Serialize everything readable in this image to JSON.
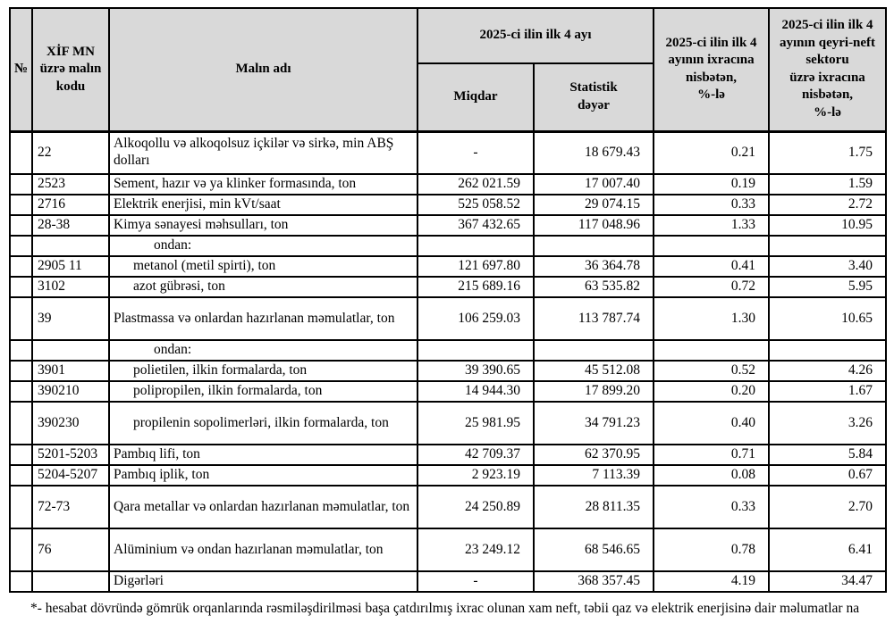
{
  "header": {
    "col_no": "№",
    "col_code": "XİF MN\nüzrə malın\nkodu",
    "col_name": "Malın adı",
    "col_period": "2025-ci ilin ilk 4 ayı",
    "col_qty": "Miqdar",
    "col_value": "Statistik\ndəyər",
    "col_share_total": "2025-ci ilin ilk 4\nayının ixracına\nnisbətən,\n%-lə",
    "col_share_nonoil": "2025-ci ilin ilk 4\nayının qeyri-neft\nsektoru\nüzrə ixracına\nnisbətən,\n%-lə"
  },
  "rows": [
    {
      "no": "",
      "code": "22",
      "name": "Alkoqollu və alkoqolsuz içkilər və sirkə, min ABŞ dolları",
      "qty": "-",
      "val": "18 679.43",
      "p1": "0.21",
      "p2": "1.75",
      "ind": 0,
      "tall": true
    },
    {
      "no": "",
      "code": "2523",
      "name": "Sement, hazır və ya klinker formasında, ton",
      "qty": "262 021.59",
      "val": "17 007.40",
      "p1": "0.19",
      "p2": "1.59",
      "ind": 0,
      "tall": false
    },
    {
      "no": "",
      "code": "2716",
      "name": "Elektrik enerjisi, min kVt/saat",
      "qty": "525 058.52",
      "val": "29 074.15",
      "p1": "0.33",
      "p2": "2.72",
      "ind": 0,
      "tall": false
    },
    {
      "no": "",
      "code": "28-38",
      "name": "Kimya sənayesi məhsulları, ton",
      "qty": "367 432.65",
      "val": "117 048.96",
      "p1": "1.33",
      "p2": "10.95",
      "ind": 0,
      "tall": false
    },
    {
      "no": "",
      "code": "",
      "name": "ondan:",
      "qty": "",
      "val": "",
      "p1": "",
      "p2": "",
      "ind": 2,
      "tall": false
    },
    {
      "no": "",
      "code": "2905 11",
      "name": "metanol (metil spirti), ton",
      "qty": "121 697.80",
      "val": "36 364.78",
      "p1": "0.41",
      "p2": "3.40",
      "ind": 1,
      "tall": false
    },
    {
      "no": "",
      "code": "3102",
      "name": "azot gübrəsi, ton",
      "qty": "215 689.16",
      "val": "63 535.82",
      "p1": "0.72",
      "p2": "5.95",
      "ind": 1,
      "tall": false
    },
    {
      "no": "",
      "code": "39",
      "name": "Plastmassa və onlardan hazırlanan məmulatlar, ton",
      "qty": "106 259.03",
      "val": "113 787.74",
      "p1": "1.30",
      "p2": "10.65",
      "ind": 0,
      "tall": true
    },
    {
      "no": "",
      "code": "",
      "name": "ondan:",
      "qty": "",
      "val": "",
      "p1": "",
      "p2": "",
      "ind": 2,
      "tall": false
    },
    {
      "no": "",
      "code": "3901",
      "name": "polietilen, ilkin formalarda, ton",
      "qty": "39 390.65",
      "val": "45 512.08",
      "p1": "0.52",
      "p2": "4.26",
      "ind": 1,
      "tall": false
    },
    {
      "no": "",
      "code": "390210",
      "name": "polipropilen, ilkin formalarda, ton",
      "qty": "14 944.30",
      "val": "17 899.20",
      "p1": "0.20",
      "p2": "1.67",
      "ind": 1,
      "tall": false
    },
    {
      "no": "",
      "code": "390230",
      "name": "propilenin sopolimerləri, ilkin formalarda, ton",
      "qty": "25 981.95",
      "val": "34 791.23",
      "p1": "0.40",
      "p2": "3.26",
      "ind": 1,
      "tall": true
    },
    {
      "no": "",
      "code": "5201-5203",
      "name": "Pambıq lifi, ton",
      "qty": "42 709.37",
      "val": "62 370.95",
      "p1": "0.71",
      "p2": "5.84",
      "ind": 0,
      "tall": false
    },
    {
      "no": "",
      "code": "5204-5207",
      "name": "Pambıq iplik, ton",
      "qty": "2 923.19",
      "val": "7 113.39",
      "p1": "0.08",
      "p2": "0.67",
      "ind": 0,
      "tall": false
    },
    {
      "no": "",
      "code": "72-73",
      "name": "Qara metallar və onlardan hazırlanan məmulatlar, ton",
      "qty": "24 250.89",
      "val": "28 811.35",
      "p1": "0.33",
      "p2": "2.70",
      "ind": 0,
      "tall": true
    },
    {
      "no": "",
      "code": "76",
      "name": "Alüminium və ondan hazırlanan məmulatlar, ton",
      "qty": "23 249.12",
      "val": "68 546.65",
      "p1": "0.78",
      "p2": "6.41",
      "ind": 0,
      "tall": true
    },
    {
      "no": "",
      "code": "",
      "name": "Digərləri",
      "qty": "-",
      "val": "368 357.45",
      "p1": "4.19",
      "p2": "34.47",
      "ind": 0,
      "tall": false
    }
  ],
  "footnote": "*- hesabat dövründə gömrük orqanlarında rəsmiləşdirilməsi başa çatdırılmış ixrac olunan xam neft, təbii qaz və elektrik enerjisinə dair məlumatlar na",
  "colors": {
    "header_bg": "#d9d9d9",
    "border": "#000000",
    "text": "#000000",
    "page_bg": "#ffffff"
  }
}
